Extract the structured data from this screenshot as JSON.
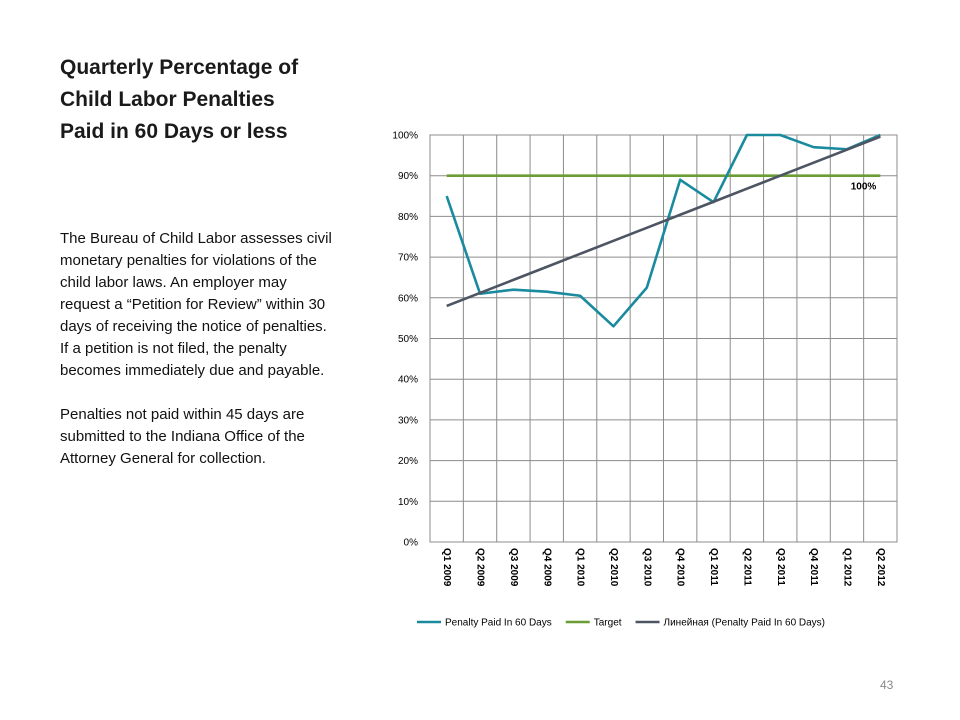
{
  "slide": {
    "title_lines": [
      "Quarterly Percentage of",
      "Child Labor Penalties",
      "Paid in 60 Days or less"
    ],
    "paragraphs": [
      "The Bureau of Child Labor assesses civil monetary penalties for violations of the child labor laws. An employer may request a “Petition for Review” within 30 days of receiving the notice of penalties.  If a petition is not filed, the penalty becomes immediately due and payable.",
      "Penalties not paid within 45 days are submitted to the Indiana Office of the Attorney General for collection."
    ],
    "page_number": "43"
  },
  "chart_data": {
    "type": "line",
    "categories": [
      "Q1 2009",
      "Q2 2009",
      "Q3 2009",
      "Q4 2009",
      "Q1 2010",
      "Q2 2010",
      "Q3 2010",
      "Q4 2010",
      "Q1 2011",
      "Q2 2011",
      "Q3 2011",
      "Q4 2011",
      "Q1 2012",
      "Q2 2012"
    ],
    "series": [
      {
        "name": "Penalty Paid In 60 Days",
        "color": "#1a8a9e",
        "values": [
          85,
          61,
          62,
          61.5,
          60.5,
          53,
          62.5,
          89,
          83.5,
          100,
          100,
          97,
          96.5,
          100
        ]
      },
      {
        "name": "Target",
        "color": "#6a9e34",
        "values": [
          90,
          90,
          90,
          90,
          90,
          90,
          90,
          90,
          90,
          90,
          90,
          90,
          90,
          90
        ]
      },
      {
        "name": "Линейная (Penalty Paid In 60 Days)",
        "color": "#4d5563",
        "values": [
          58,
          61.2,
          64.4,
          67.6,
          70.8,
          74,
          77.2,
          80.4,
          83.6,
          86.8,
          90,
          93.2,
          96.4,
          99.6
        ]
      }
    ],
    "ylim": [
      0,
      100
    ],
    "yticks": [
      "0%",
      "10%",
      "20%",
      "30%",
      "40%",
      "50%",
      "60%",
      "70%",
      "80%",
      "90%",
      "100%"
    ],
    "annotation": "100%",
    "grid": true,
    "legend_position": "bottom"
  }
}
